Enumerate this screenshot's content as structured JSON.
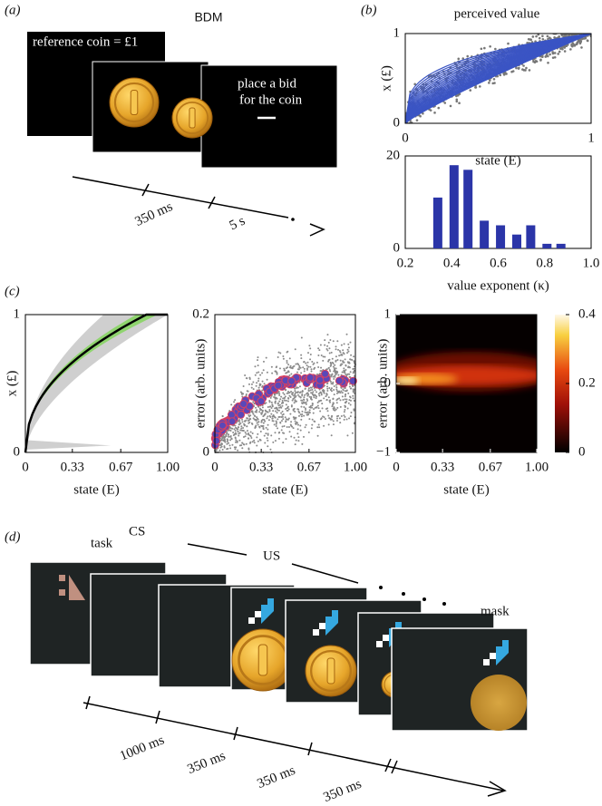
{
  "panel_a": {
    "label": "(a)",
    "title": "BDM",
    "reference_text": "reference coin = £1",
    "bid_text": [
      "place a bid",
      "for the coin"
    ],
    "timeline": [
      "350 ms",
      "5 s"
    ]
  },
  "panel_b": {
    "label": "(b)",
    "title": "perceived value",
    "scatter": {
      "xlim": [
        0,
        1
      ],
      "ylim": [
        0,
        1
      ],
      "xticks": [
        0,
        1
      ],
      "yticks": [
        0,
        1
      ],
      "xlabel": "state (E)",
      "ylabel": "x (£)"
    },
    "chart_data": {
      "type": "bar",
      "x": [
        0.34,
        0.41,
        0.47,
        0.54,
        0.61,
        0.68,
        0.74,
        0.81,
        0.87
      ],
      "values": [
        11,
        18,
        17,
        6,
        5,
        3,
        5,
        1,
        1
      ],
      "color": "#2b35a8",
      "xlim": [
        0.2,
        1
      ],
      "ylim": [
        0,
        20
      ],
      "xticks": [
        0.2,
        0.4,
        0.6,
        0.8,
        {
          "value": 1,
          "label": "1.0"
        }
      ],
      "yticks": [
        0,
        20
      ],
      "xlabel": "value exponent (κ)"
    }
  },
  "panel_c": {
    "label": "(c)",
    "plots": [
      {
        "xlim": [
          0,
          1
        ],
        "ylim": [
          0,
          1
        ],
        "xticks": [
          0,
          0.33,
          0.67,
          {
            "value": 1,
            "label": "1.00"
          }
        ],
        "yticks": [
          0,
          1
        ],
        "xlabel": "state (E)",
        "ylabel": "x (£)"
      },
      {
        "xlim": [
          0,
          1
        ],
        "ylim": [
          0,
          0.2
        ],
        "xticks": [
          0,
          0.33,
          0.67,
          {
            "value": 1,
            "label": "1.00"
          }
        ],
        "yticks": [
          0,
          0.2
        ],
        "xlabel": "state (E)",
        "ylabel": "error (arb. units)"
      },
      {
        "xlim": [
          0,
          1
        ],
        "ylim": [
          -1,
          1
        ],
        "xticks": [
          0,
          0.33,
          0.67,
          {
            "value": 1,
            "label": "1.00"
          }
        ],
        "yticks": [
          {
            "value": -1,
            "label": "−1"
          },
          0,
          1
        ],
        "xlabel": "state (E)",
        "ylabel": "error (arb. units)"
      }
    ],
    "colorbar": {
      "lim": [
        0,
        0.4
      ],
      "ticks": [
        0,
        0.2,
        0.4
      ]
    }
  },
  "panel_d": {
    "label": "(d)",
    "task": "task",
    "cs": "CS",
    "us": "US",
    "mask": "mask",
    "timeline": [
      "1000 ms",
      "350 ms",
      "350 ms",
      "350 ms"
    ]
  }
}
